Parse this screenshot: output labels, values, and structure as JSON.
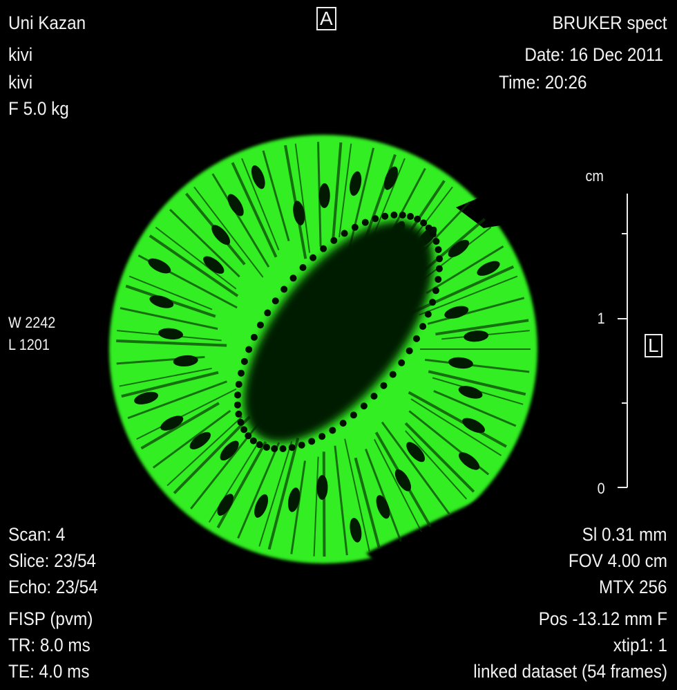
{
  "top_left": [
    "Uni Kazan",
    "kivi",
    "kivi",
    "F 5.0 kg"
  ],
  "top_right": [
    "BRUKER spect",
    "Date: 16 Dec 2011",
    "Time: 20:26"
  ],
  "orientation_top": "A",
  "orientation_right": "L",
  "window_level": [
    "W 2242",
    "L 1201"
  ],
  "bottom_left": [
    "Scan: 4",
    "Slice: 23/54",
    "Echo: 23/54",
    "FISP (pvm)",
    "TR: 8.0 ms",
    "TE: 4.0 ms"
  ],
  "bottom_right": [
    "Sl 0.31 mm",
    "FOV 4.00 cm",
    "MTX 256",
    "Pos -13.12 mm F",
    "xtip1: 1",
    "linked dataset (54 frames)"
  ],
  "scale_bar": {
    "unit": "cm",
    "labels": [
      "1",
      "0"
    ]
  },
  "colors": {
    "signal": "#33ee22",
    "background": "#000000",
    "overlay_text": "#f2f2f2"
  }
}
